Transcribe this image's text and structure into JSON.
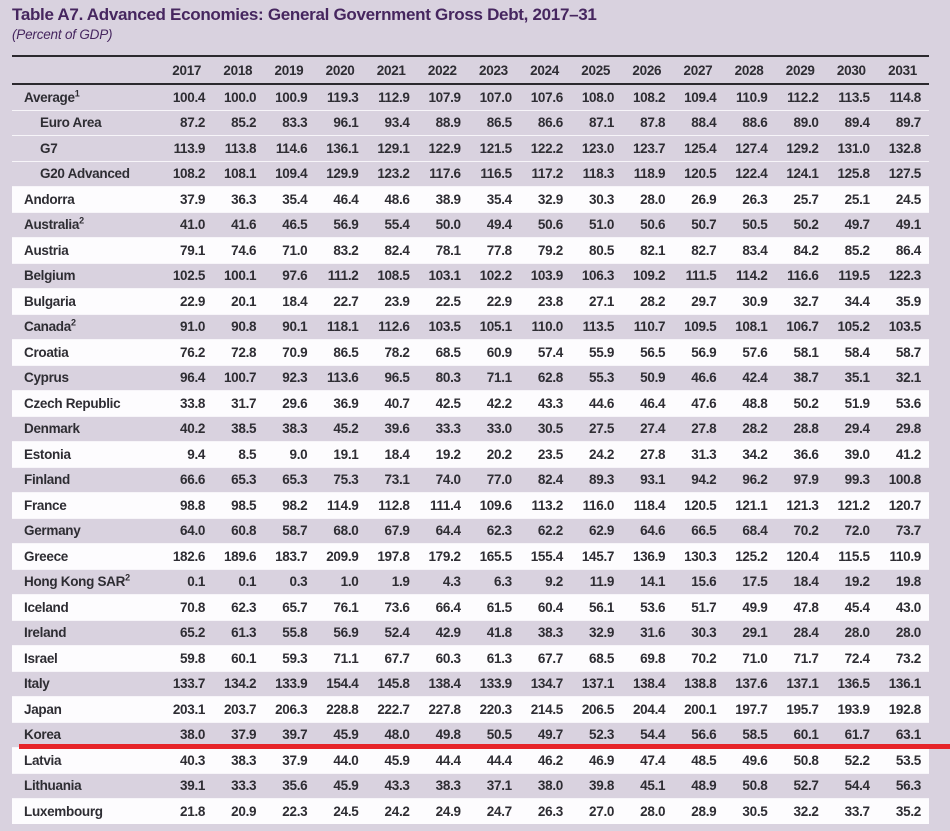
{
  "table": {
    "title": "Table A7. Advanced Economies: General Government Gross Debt, 2017–31",
    "subtitle": "(Percent of GDP)",
    "unit": "Percent of GDP",
    "years": [
      "2017",
      "2018",
      "2019",
      "2020",
      "2021",
      "2022",
      "2023",
      "2024",
      "2025",
      "2026",
      "2027",
      "2028",
      "2029",
      "2030",
      "2031"
    ],
    "rows": [
      {
        "label": "Average",
        "sup": "1",
        "indent": false,
        "bg": "purple",
        "values": [
          100.4,
          100.0,
          100.9,
          119.3,
          112.9,
          107.9,
          107.0,
          107.6,
          108.0,
          108.2,
          109.4,
          110.9,
          112.2,
          113.5,
          114.8
        ]
      },
      {
        "label": "Euro Area",
        "indent": true,
        "bg": "purple",
        "values": [
          87.2,
          85.2,
          83.3,
          96.1,
          93.4,
          88.9,
          86.5,
          86.6,
          87.1,
          87.8,
          88.4,
          88.6,
          89.0,
          89.4,
          89.7
        ]
      },
      {
        "label": "G7",
        "indent": true,
        "bg": "purple",
        "values": [
          113.9,
          113.8,
          114.6,
          136.1,
          129.1,
          122.9,
          121.5,
          122.2,
          123.0,
          123.7,
          125.4,
          127.4,
          129.2,
          131.0,
          132.8
        ]
      },
      {
        "label": "G20 Advanced",
        "indent": true,
        "bg": "purple",
        "values": [
          108.2,
          108.1,
          109.4,
          129.9,
          123.2,
          117.6,
          116.5,
          117.2,
          118.3,
          118.9,
          120.5,
          122.4,
          124.1,
          125.8,
          127.5
        ]
      },
      {
        "label": "Andorra",
        "bg": "white",
        "values": [
          37.9,
          36.3,
          35.4,
          46.4,
          48.6,
          38.9,
          35.4,
          32.9,
          30.3,
          28.0,
          26.9,
          26.3,
          25.7,
          25.1,
          24.5
        ]
      },
      {
        "label": "Australia",
        "sup": "2",
        "bg": "purple",
        "values": [
          41.0,
          41.6,
          46.5,
          56.9,
          55.4,
          50.0,
          49.4,
          50.6,
          51.0,
          50.6,
          50.7,
          50.5,
          50.2,
          49.7,
          49.1
        ]
      },
      {
        "label": "Austria",
        "bg": "white",
        "values": [
          79.1,
          74.6,
          71.0,
          83.2,
          82.4,
          78.1,
          77.8,
          79.2,
          80.5,
          82.1,
          82.7,
          83.4,
          84.2,
          85.2,
          86.4
        ]
      },
      {
        "label": "Belgium",
        "bg": "purple",
        "values": [
          102.5,
          100.1,
          97.6,
          111.2,
          108.5,
          103.1,
          102.2,
          103.9,
          106.3,
          109.2,
          111.5,
          114.2,
          116.6,
          119.5,
          122.3
        ]
      },
      {
        "label": "Bulgaria",
        "bg": "white",
        "values": [
          22.9,
          20.1,
          18.4,
          22.7,
          23.9,
          22.5,
          22.9,
          23.8,
          27.1,
          28.2,
          29.7,
          30.9,
          32.7,
          34.4,
          35.9
        ]
      },
      {
        "label": "Canada",
        "sup": "2",
        "bg": "purple",
        "values": [
          91.0,
          90.8,
          90.1,
          118.1,
          112.6,
          103.5,
          105.1,
          110.0,
          113.5,
          110.7,
          109.5,
          108.1,
          106.7,
          105.2,
          103.5
        ]
      },
      {
        "label": "Croatia",
        "bg": "white",
        "values": [
          76.2,
          72.8,
          70.9,
          86.5,
          78.2,
          68.5,
          60.9,
          57.4,
          55.9,
          56.5,
          56.9,
          57.6,
          58.1,
          58.4,
          58.7
        ]
      },
      {
        "label": "Cyprus",
        "bg": "purple",
        "values": [
          96.4,
          100.7,
          92.3,
          113.6,
          96.5,
          80.3,
          71.1,
          62.8,
          55.3,
          50.9,
          46.6,
          42.4,
          38.7,
          35.1,
          32.1
        ]
      },
      {
        "label": "Czech Republic",
        "bg": "white",
        "values": [
          33.8,
          31.7,
          29.6,
          36.9,
          40.7,
          42.5,
          42.2,
          43.3,
          44.6,
          46.4,
          47.6,
          48.8,
          50.2,
          51.9,
          53.6
        ]
      },
      {
        "label": "Denmark",
        "bg": "purple",
        "values": [
          40.2,
          38.5,
          38.3,
          45.2,
          39.6,
          33.3,
          33.0,
          30.5,
          27.5,
          27.4,
          27.8,
          28.2,
          28.8,
          29.4,
          29.8
        ]
      },
      {
        "label": "Estonia",
        "bg": "white",
        "values": [
          9.4,
          8.5,
          9.0,
          19.1,
          18.4,
          19.2,
          20.2,
          23.5,
          24.2,
          27.8,
          31.3,
          34.2,
          36.6,
          39.0,
          41.2
        ]
      },
      {
        "label": "Finland",
        "bg": "purple",
        "values": [
          66.6,
          65.3,
          65.3,
          75.3,
          73.1,
          74.0,
          77.0,
          82.4,
          89.3,
          93.1,
          94.2,
          96.2,
          97.9,
          99.3,
          100.8
        ]
      },
      {
        "label": "France",
        "bg": "white",
        "values": [
          98.8,
          98.5,
          98.2,
          114.9,
          112.8,
          111.4,
          109.6,
          113.2,
          116.0,
          118.4,
          120.5,
          121.1,
          121.3,
          121.2,
          120.7
        ]
      },
      {
        "label": "Germany",
        "bg": "purple",
        "values": [
          64.0,
          60.8,
          58.7,
          68.0,
          67.9,
          64.4,
          62.3,
          62.2,
          62.9,
          64.6,
          66.5,
          68.4,
          70.2,
          72.0,
          73.7
        ]
      },
      {
        "label": "Greece",
        "bg": "white",
        "values": [
          182.6,
          189.6,
          183.7,
          209.9,
          197.8,
          179.2,
          165.5,
          155.4,
          145.7,
          136.9,
          130.3,
          125.2,
          120.4,
          115.5,
          110.9
        ]
      },
      {
        "label": "Hong Kong SAR",
        "sup": "2",
        "bg": "purple",
        "values": [
          0.1,
          0.1,
          0.3,
          1.0,
          1.9,
          4.3,
          6.3,
          9.2,
          11.9,
          14.1,
          15.6,
          17.5,
          18.4,
          19.2,
          19.8
        ]
      },
      {
        "label": "Iceland",
        "bg": "white",
        "values": [
          70.8,
          62.3,
          65.7,
          76.1,
          73.6,
          66.4,
          61.5,
          60.4,
          56.1,
          53.6,
          51.7,
          49.9,
          47.8,
          45.4,
          43.0
        ]
      },
      {
        "label": "Ireland",
        "bg": "purple",
        "values": [
          65.2,
          61.3,
          55.8,
          56.9,
          52.4,
          42.9,
          41.8,
          38.3,
          32.9,
          31.6,
          30.3,
          29.1,
          28.4,
          28.0,
          28.0
        ]
      },
      {
        "label": "Israel",
        "bg": "white",
        "values": [
          59.8,
          60.1,
          59.3,
          71.1,
          67.7,
          60.3,
          61.3,
          67.7,
          68.5,
          69.8,
          70.2,
          71.0,
          71.7,
          72.4,
          73.2
        ]
      },
      {
        "label": "Italy",
        "bg": "purple",
        "values": [
          133.7,
          134.2,
          133.9,
          154.4,
          145.8,
          138.4,
          133.9,
          134.7,
          137.1,
          138.4,
          138.8,
          137.6,
          137.1,
          136.5,
          136.1
        ]
      },
      {
        "label": "Japan",
        "bg": "white",
        "values": [
          203.1,
          203.7,
          206.3,
          228.8,
          222.7,
          227.8,
          220.3,
          214.5,
          206.5,
          204.4,
          200.1,
          197.7,
          195.7,
          193.9,
          192.8
        ]
      },
      {
        "label": "Korea",
        "bg": "purple",
        "red_underline": true,
        "values": [
          38.0,
          37.9,
          39.7,
          45.9,
          48.0,
          49.8,
          50.5,
          49.7,
          52.3,
          54.4,
          56.6,
          58.5,
          60.1,
          61.7,
          63.1
        ]
      },
      {
        "label": "Latvia",
        "bg": "white",
        "values": [
          40.3,
          38.3,
          37.9,
          44.0,
          45.9,
          44.4,
          44.4,
          46.2,
          46.9,
          47.4,
          48.5,
          49.6,
          50.8,
          52.2,
          53.5
        ]
      },
      {
        "label": "Lithuania",
        "bg": "purple",
        "values": [
          39.1,
          33.3,
          35.6,
          45.9,
          43.3,
          38.3,
          37.1,
          38.0,
          39.8,
          45.1,
          48.9,
          50.8,
          52.7,
          54.4,
          56.3
        ]
      },
      {
        "label": "Luxembourg",
        "bg": "white",
        "values": [
          21.8,
          20.9,
          22.3,
          24.5,
          24.2,
          24.9,
          24.7,
          26.3,
          27.0,
          28.0,
          28.9,
          30.5,
          32.2,
          33.7,
          35.2
        ]
      }
    ]
  },
  "annotation": {
    "type": "red-underline",
    "target_row": "Korea",
    "color": "#e62429"
  },
  "appearance": {
    "page_background": "#d9d2df",
    "stripe_color": "#fdfcfe",
    "title_color": "#46265f",
    "rule_color": "#2b292e",
    "text_color": "#2e2d33"
  }
}
